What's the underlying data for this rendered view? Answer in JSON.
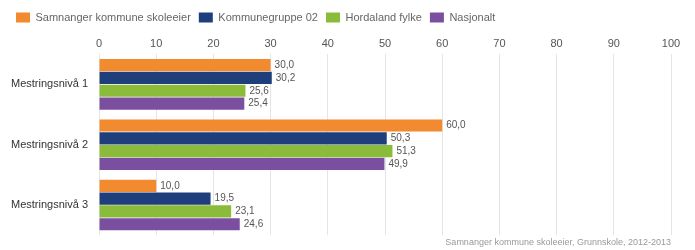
{
  "chart_data": {
    "type": "bar",
    "orientation": "horizontal",
    "categories": [
      "Mestringsnivå 1",
      "Mestringsnivå 2",
      "Mestringsnivå 3"
    ],
    "series": [
      {
        "name": "Samnanger kommune skoleeier",
        "color": "#F28A30",
        "values": [
          30.0,
          60.0,
          10.0
        ],
        "value_labels": [
          "30,0",
          "60,0",
          "10,0"
        ]
      },
      {
        "name": "Kommunegruppe 02",
        "color": "#1F3E7C",
        "values": [
          30.2,
          50.3,
          19.5
        ],
        "value_labels": [
          "30,2",
          "50,3",
          "19,5"
        ]
      },
      {
        "name": "Hordaland fylke",
        "color": "#8BBB3A",
        "values": [
          25.6,
          51.3,
          23.1
        ],
        "value_labels": [
          "25,6",
          "51,3",
          "23,1"
        ]
      },
      {
        "name": "Nasjonalt",
        "color": "#7B4FA0",
        "values": [
          25.4,
          49.9,
          24.6
        ],
        "value_labels": [
          "25,4",
          "49,9",
          "24,6"
        ]
      }
    ],
    "xlim": [
      0,
      100
    ],
    "xticks": [
      0,
      10,
      20,
      30,
      40,
      50,
      60,
      70,
      80,
      90,
      100
    ],
    "grid": true,
    "legend": "upper left",
    "data_labels": true,
    "annotations": [
      "Samnanger kommune skoleeier, Grunnskole, 2012-2013"
    ]
  }
}
